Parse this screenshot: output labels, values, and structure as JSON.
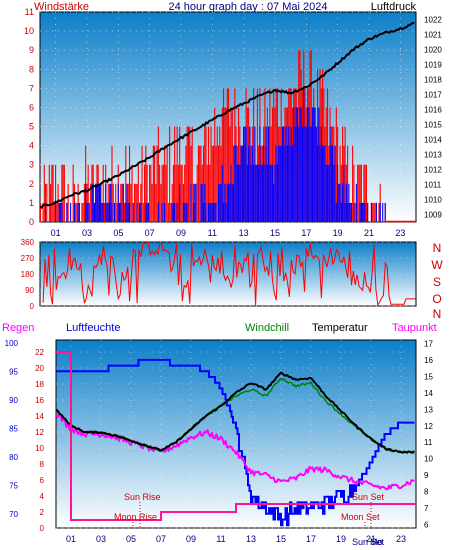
{
  "top": {
    "left_label": "Windstärke",
    "title": "24 hour graph day : 07 Mai 2024",
    "right_label": "Luftdruck"
  },
  "middle": {
    "compass": [
      "N",
      "W",
      "S",
      "O",
      "N"
    ]
  },
  "bottom": {
    "labels": {
      "regen": "Regen",
      "luftfeuchte": "Luftfeuchte",
      "windchill": "Windchill",
      "temperatur": "Temperatur",
      "taupunkt": "Taupunkt"
    },
    "annotations": {
      "sun_rise": "Sun Rise",
      "moon_rise": "Moon Rise",
      "sun_set": "Sun Set",
      "moon_set": "Moon Set",
      "sun_set_bottom": "Sun Set",
      "moon_set_bottom": "Mo"
    }
  },
  "colors": {
    "gradient_top": "#0c7fc9",
    "gradient_bottom": "#ffffff",
    "wind": "#ff0000",
    "gust": "#0000ff",
    "pressure": "#000000",
    "humidity": "#0000ff",
    "temperature": "#000000",
    "dewpoint": "#ff00ff",
    "windchill": "#008000",
    "rain": "#ff1493",
    "axis_red": "#cc0000",
    "axis_blue": "#0000cc",
    "text_dark": "#000080"
  },
  "chart_data": [
    {
      "type": "bar",
      "id": "wind_pressure",
      "x_ticks": [
        "01",
        "03",
        "05",
        "07",
        "09",
        "11",
        "13",
        "15",
        "17",
        "19",
        "21",
        "23"
      ],
      "x_range": [
        0,
        24
      ],
      "wind_y_ticks": [
        "0",
        "1",
        "2",
        "3",
        "4",
        "5",
        "6",
        "7",
        "8",
        "9",
        "10",
        "11"
      ],
      "wind_ylim": [
        0,
        11
      ],
      "pressure_y_ticks": [
        "1009",
        "1010",
        "1011",
        "1012",
        "1013",
        "1014",
        "1015",
        "1016",
        "1017",
        "1018",
        "1019",
        "1020",
        "1021",
        "1022"
      ],
      "pressure_ylim": [
        1008.5,
        1022.5
      ],
      "series": [
        {
          "name": "Windstärke",
          "hours": [
            0,
            1,
            2,
            3,
            4,
            5,
            6,
            7,
            8,
            9,
            10,
            11,
            12,
            13,
            14,
            15,
            16,
            17,
            18,
            19,
            20,
            21,
            22,
            23,
            24
          ],
          "values": [
            1,
            2,
            1,
            2,
            2,
            3,
            2,
            3,
            3,
            4,
            3,
            5,
            6,
            6,
            5,
            6,
            7,
            8,
            6,
            4,
            2,
            2,
            0,
            0,
            0
          ]
        },
        {
          "name": "Böen",
          "hours": [
            0,
            1,
            2,
            3,
            4,
            5,
            6,
            7,
            8,
            9,
            10,
            11,
            12,
            13,
            14,
            15,
            16,
            17,
            18,
            19,
            20,
            21,
            22,
            23,
            24
          ],
          "values": [
            0,
            0,
            0,
            1,
            1,
            1,
            0,
            1,
            0,
            1,
            1,
            1,
            2,
            4,
            4,
            3,
            5,
            6,
            5,
            2,
            1,
            0,
            0,
            0,
            0
          ]
        },
        {
          "name": "Luftdruck",
          "hours": [
            0,
            1,
            2,
            3,
            4,
            5,
            6,
            7,
            8,
            9,
            10,
            11,
            12,
            13,
            14,
            15,
            16,
            17,
            18,
            19,
            20,
            21,
            22,
            23,
            24
          ],
          "values": [
            1009.5,
            1009.8,
            1010.3,
            1010.6,
            1011.1,
            1011.6,
            1012.2,
            1012.8,
            1013.5,
            1014.1,
            1014.7,
            1015.3,
            1015.9,
            1016.4,
            1016.9,
            1017.3,
            1017.1,
            1017.5,
            1018.2,
            1019.1,
            1020.0,
            1020.7,
            1021.1,
            1021.4,
            1021.8
          ]
        }
      ]
    },
    {
      "type": "bar",
      "id": "wind_direction",
      "x_range": [
        0,
        24
      ],
      "y_ticks": [
        "0",
        "45",
        "90",
        "135",
        "180",
        "225",
        "270",
        "315",
        "360"
      ],
      "ylim": [
        0,
        360
      ],
      "series": [
        {
          "name": "Windrichtung",
          "hours": [
            0,
            1,
            2,
            3,
            4,
            5,
            6,
            7,
            8,
            9,
            10,
            11,
            12,
            13,
            14,
            15,
            16,
            17,
            18,
            19,
            20,
            21,
            22,
            23,
            24
          ],
          "values": [
            30,
            120,
            300,
            60,
            310,
            100,
            280,
            340,
            330,
            60,
            250,
            290,
            130,
            250,
            320,
            90,
            200,
            310,
            260,
            300,
            150,
            100,
            20,
            10,
            40
          ]
        }
      ]
    },
    {
      "type": "line",
      "id": "temp_humidity",
      "x_ticks": [
        "01",
        "03",
        "05",
        "07",
        "09",
        "11",
        "13",
        "15",
        "17",
        "19",
        "21",
        "23"
      ],
      "x_range": [
        0,
        24
      ],
      "humidity_y_ticks": [
        "70",
        "75",
        "80",
        "85",
        "90",
        "95",
        "100"
      ],
      "humidity_ylim": [
        67.5,
        100.5
      ],
      "rain_y_ticks": [
        "0",
        "2",
        "4",
        "6",
        "8",
        "10",
        "12",
        "14",
        "16",
        "18",
        "20",
        "22"
      ],
      "rain_ylim": [
        0,
        23.5
      ],
      "temp_y_ticks": [
        "6",
        "7",
        "8",
        "9",
        "10",
        "11",
        "12",
        "13",
        "14",
        "15",
        "16",
        "17"
      ],
      "temp_ylim": [
        5.8,
        17.2
      ],
      "series": [
        {
          "name": "Luftfeuchte",
          "hours": [
            0,
            1,
            2,
            3,
            4,
            5,
            6,
            7,
            8,
            9,
            10,
            11,
            12,
            13,
            14,
            15,
            16,
            17,
            18,
            19,
            20,
            21,
            22,
            23,
            24
          ],
          "values": [
            95,
            95,
            95,
            95,
            96,
            96,
            97,
            97,
            96,
            96,
            95,
            92,
            85,
            73,
            71,
            69,
            71,
            71,
            72,
            73,
            75,
            79,
            84,
            86,
            86
          ]
        },
        {
          "name": "Temperatur",
          "hours": [
            0,
            1,
            2,
            3,
            4,
            5,
            6,
            7,
            8,
            9,
            10,
            11,
            12,
            13,
            14,
            15,
            16,
            17,
            18,
            19,
            20,
            21,
            22,
            23,
            24
          ],
          "values": [
            13.0,
            12.0,
            11.6,
            11.6,
            11.4,
            11.1,
            10.8,
            10.5,
            11.0,
            11.8,
            12.6,
            13.2,
            14.0,
            14.6,
            14.2,
            15.2,
            14.8,
            14.9,
            13.8,
            12.9,
            12.0,
            11.2,
            10.6,
            10.4,
            10.4
          ]
        },
        {
          "name": "Taupunkt",
          "hours": [
            0,
            1,
            2,
            3,
            4,
            5,
            6,
            7,
            8,
            9,
            10,
            11,
            12,
            13,
            14,
            15,
            16,
            17,
            18,
            19,
            20,
            21,
            22,
            23,
            24
          ],
          "values": [
            12.8,
            11.8,
            11.5,
            11.5,
            11.3,
            11.0,
            10.7,
            10.4,
            10.8,
            11.3,
            11.6,
            11.2,
            10.4,
            9.2,
            9.0,
            8.6,
            8.8,
            9.4,
            9.3,
            8.9,
            8.6,
            8.4,
            8.2,
            8.4,
            8.7
          ]
        },
        {
          "name": "Windchill",
          "hours": [
            0,
            1,
            2,
            3,
            4,
            5,
            6,
            7,
            8,
            9,
            10,
            11,
            12,
            13,
            14,
            15,
            16,
            17,
            18,
            19,
            20,
            21,
            22,
            23,
            24
          ],
          "values": [
            13.0,
            12.0,
            11.6,
            11.6,
            11.4,
            11.1,
            10.8,
            10.5,
            11.0,
            11.8,
            12.6,
            13.2,
            13.8,
            14.2,
            13.8,
            14.9,
            14.4,
            14.6,
            13.5,
            12.7,
            11.9,
            11.2,
            10.6,
            10.4,
            10.4
          ]
        },
        {
          "name": "Regen",
          "hours": [
            0,
            0.7,
            1,
            6,
            7,
            12,
            24
          ],
          "values": [
            22,
            22,
            1,
            1,
            2,
            3,
            3
          ]
        }
      ]
    }
  ]
}
